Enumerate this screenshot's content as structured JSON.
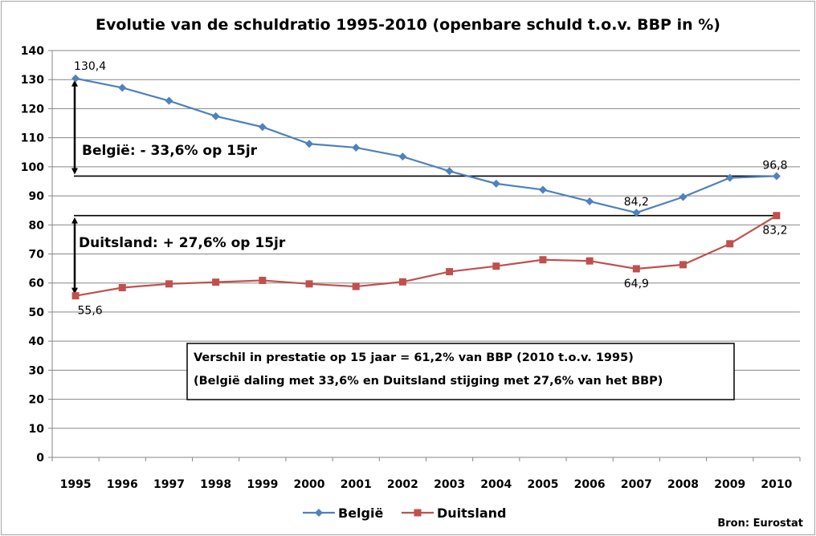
{
  "chart_data": {
    "type": "line",
    "title": "Evolutie van de schuldratio 1995-2010 (openbare schuld t.o.v. BBP in %)",
    "x": [
      "1995",
      "1996",
      "1997",
      "1998",
      "1999",
      "2000",
      "2001",
      "2002",
      "2003",
      "2004",
      "2005",
      "2006",
      "2007",
      "2008",
      "2009",
      "2010"
    ],
    "ylim": [
      0,
      140
    ],
    "yticks": [
      0,
      10,
      20,
      30,
      40,
      50,
      60,
      70,
      80,
      90,
      100,
      110,
      120,
      130,
      140
    ],
    "grid": true,
    "legend_position": "bottom",
    "series": [
      {
        "name": "België",
        "color": "#4f81bd",
        "marker": "diamond",
        "values": [
          130.4,
          127.2,
          122.7,
          117.4,
          113.7,
          107.9,
          106.6,
          103.5,
          98.5,
          94.2,
          92.1,
          88.1,
          84.2,
          89.6,
          96.2,
          96.8
        ]
      },
      {
        "name": "Duitsland",
        "color": "#c0504d",
        "marker": "square",
        "values": [
          55.6,
          58.4,
          59.7,
          60.3,
          60.9,
          59.7,
          58.8,
          60.4,
          63.9,
          65.8,
          68.0,
          67.6,
          64.9,
          66.3,
          73.5,
          83.2
        ]
      }
    ],
    "data_labels": [
      {
        "series": 0,
        "index": 0,
        "text": "130,4",
        "pos": "above"
      },
      {
        "series": 0,
        "index": 12,
        "text": "84,2",
        "pos": "above"
      },
      {
        "series": 0,
        "index": 15,
        "text": "96,8",
        "pos": "above"
      },
      {
        "series": 1,
        "index": 0,
        "text": "55,6",
        "pos": "below"
      },
      {
        "series": 1,
        "index": 12,
        "text": "64,9",
        "pos": "below"
      },
      {
        "series": 1,
        "index": 15,
        "text": "83,2",
        "pos": "below"
      }
    ],
    "reference_lines": [
      96.8,
      83.2
    ],
    "annotations": {
      "belgie": "België: - 33,6% op 15jr",
      "duitsland": "Duitsland: + 27,6% op 15jr"
    },
    "note": {
      "line1": "Verschil in prestatie op 15 jaar = 61,2% van BBP (2010 t.o.v. 1995)",
      "line2": "(België daling met 33,6% en Duitsland stijging met 27,6% van het BBP)"
    },
    "source": "Bron: Eurostat"
  }
}
